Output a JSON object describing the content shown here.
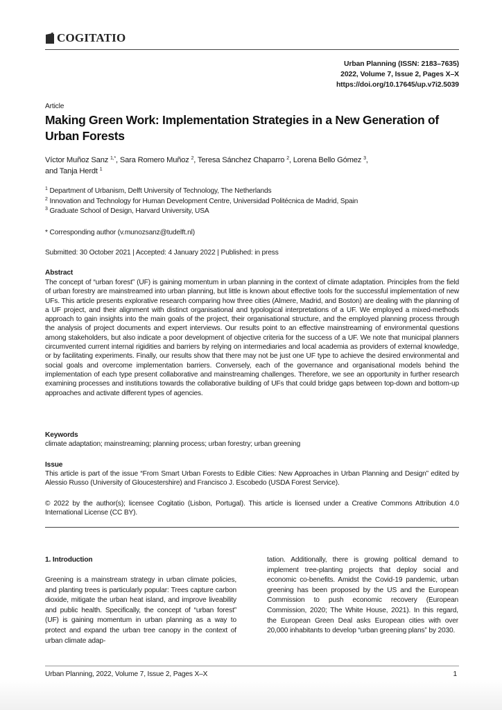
{
  "header": {
    "publisher": "COGITATIO",
    "journal_line": "Urban Planning (ISSN: 2183–7635)",
    "volume_line": "2022, Volume 7, Issue 2, Pages X–X",
    "doi": "https://doi.org/10.17645/up.v7i2.5039"
  },
  "article": {
    "type": "Article",
    "title": "Making Green Work: Implementation Strategies in a New Generation of Urban Forests",
    "authors": [
      {
        "name": "Víctor Muñoz Sanz",
        "sup": "1,*",
        "sep": ", "
      },
      {
        "name": "Sara Romero Muñoz",
        "sup": "2",
        "sep": ", "
      },
      {
        "name": "Teresa Sánchez Chaparro",
        "sup": "2",
        "sep": ", "
      },
      {
        "name": "Lorena Bello Gómez",
        "sup": "3",
        "sep": ","
      },
      {
        "name": "and Tanja Herdt",
        "sup": "1",
        "sep": ""
      }
    ],
    "affiliations": [
      {
        "num": "1",
        "text": "Department of Urbanism, Delft University of Technology, The Netherlands"
      },
      {
        "num": "2",
        "text": "Innovation and Technology for Human Development Centre, Universidad Politécnica de Madrid, Spain"
      },
      {
        "num": "3",
        "text": "Graduate School of Design, Harvard University, USA"
      }
    ],
    "corresponding": "* Corresponding author (v.munozsanz@tudelft.nl)",
    "dates": "Submitted: 30 October 2021 | Accepted: 4 January 2022 | Published: in press",
    "abstract_heading": "Abstract",
    "abstract": "The concept of “urban forest” (UF) is gaining momentum in urban planning in the context of climate adaptation. Principles from the field of urban forestry are mainstreamed into urban planning, but little is known about effective tools for the successful implementation of new UFs. This article presents explorative research comparing how three cities (Almere, Madrid, and Boston) are dealing with the planning of a UF project, and their alignment with distinct organisational and typological interpretations of a UF. We employed a mixed-methods approach to gain insights into the main goals of the project, their organisational structure, and the employed planning process through the analysis of project documents and expert interviews. Our results point to an effective mainstreaming of environmental questions among stakeholders, but also indicate a poor development of objective criteria for the success of a UF. We note that municipal planners circumvented current internal rigidities and barriers by relying on intermediaries and local academia as providers of external knowledge, or by facilitating experiments. Finally, our results show that there may not be just one UF type to achieve the desired environmental and social goals and overcome implementation barriers. Conversely, each of the governance and organisational models behind the implementation of each type present collaborative and mainstreaming challenges. Therefore, we see an opportunity in further research examining processes and institutions towards the collaborative building of UFs that could bridge gaps between top-down and bottom-up approaches and activate different types of agencies.",
    "keywords_heading": "Keywords",
    "keywords": "climate adaptation; mainstreaming; planning process; urban forestry; urban greening",
    "issue_heading": "Issue",
    "issue": "This article is part of the issue “From Smart Urban Forests to Edible Cities: New Approaches in Urban Planning and Design” edited by Alessio Russo (University of Gloucestershire) and Francisco J. Escobedo (USDA Forest Service).",
    "license": "© 2022 by the author(s); licensee Cogitatio (Lisbon, Portugal). This article is licensed under a Creative Commons Attribution 4.0 International License (CC BY)."
  },
  "body": {
    "section_heading": "1. Introduction",
    "col1": "Greening is a mainstream strategy in urban climate policies, and planting trees is particularly popular: Trees capture carbon dioxide, mitigate the urban heat island, and improve liveability and public health. Specifically, the concept of “urban forest” (UF) is gaining momentum in urban planning as a way to protect and expand the urban tree canopy in the context of urban climate adap-",
    "col2": "tation. Additionally, there is growing political demand to implement tree-planting projects that deploy social and economic co-benefits. Amidst the Covid-19 pandemic, urban greening has been proposed by the US and the European Commission to push economic recovery (European Commission, 2020; The White House, 2021). In this regard, the European Green Deal asks European cities with over 20,000 inhabitants to develop “urban greening plans” by 2030."
  },
  "footer": {
    "citation": "Urban Planning, 2022, Volume 7, Issue 2, Pages X–X",
    "page_number": "1"
  }
}
